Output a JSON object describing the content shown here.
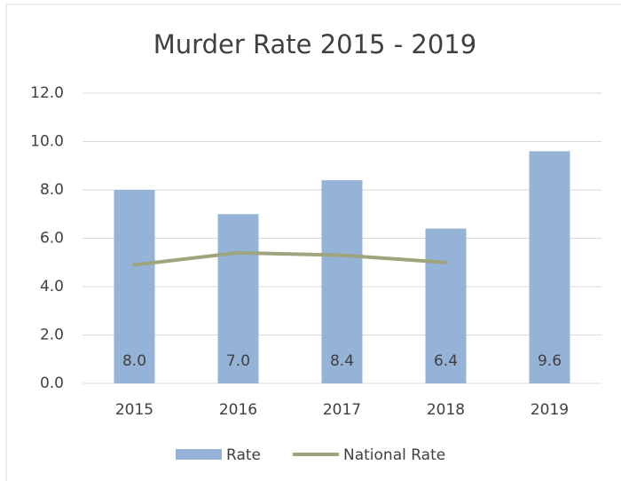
{
  "chart_data": {
    "type": "bar",
    "title": "Murder Rate 2015 - 2019",
    "categories": [
      "2015",
      "2016",
      "2017",
      "2018",
      "2019"
    ],
    "series": [
      {
        "name": "Rate",
        "type": "bar",
        "color": "#95b3d7",
        "values": [
          8.0,
          7.0,
          8.4,
          6.4,
          9.6
        ],
        "value_labels": [
          "8.0",
          "7.0",
          "8.4",
          "6.4",
          "9.6"
        ]
      },
      {
        "name": "National Rate",
        "type": "line",
        "color": "#9ea47d",
        "values": [
          4.9,
          5.4,
          5.3,
          5.0,
          null
        ]
      }
    ],
    "ylim": [
      0,
      12
    ],
    "yticks": [
      {
        "value": 0,
        "label": "0.0"
      },
      {
        "value": 2,
        "label": "2.0"
      },
      {
        "value": 4,
        "label": "4.0"
      },
      {
        "value": 6,
        "label": "6.0"
      },
      {
        "value": 8,
        "label": "8.0"
      },
      {
        "value": 10,
        "label": "10.0"
      },
      {
        "value": 12,
        "label": "12.0"
      }
    ],
    "grid": true,
    "legend": "bottom"
  }
}
